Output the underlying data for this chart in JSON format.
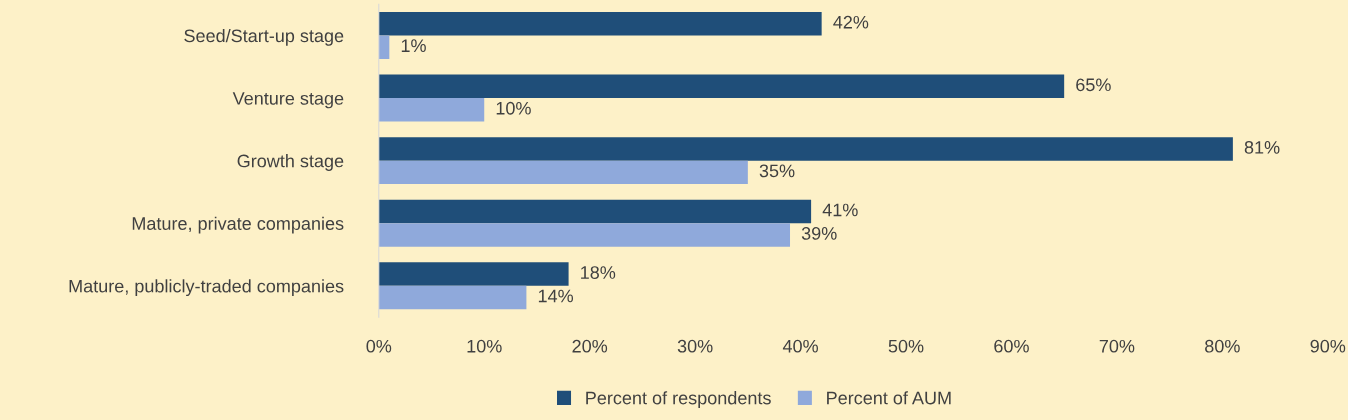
{
  "chart_data": {
    "type": "bar",
    "orientation": "horizontal",
    "categories": [
      "Seed/Start-up stage",
      "Venture stage",
      "Growth stage",
      "Mature, private companies",
      "Mature, publicly-traded companies"
    ],
    "series": [
      {
        "name": "Percent of respondents",
        "color": "#1f4e79",
        "values": [
          42,
          65,
          81,
          41,
          18
        ],
        "value_labels": [
          "42%",
          "65%",
          "81%",
          "41%",
          "18%"
        ]
      },
      {
        "name": "Percent of AUM",
        "color": "#8fa9db",
        "values": [
          1,
          10,
          35,
          39,
          14
        ],
        "value_labels": [
          "1%",
          "10%",
          "35%",
          "39%",
          "14%"
        ]
      }
    ],
    "xlim": [
      0,
      90
    ],
    "xticks": [
      {
        "value": 0,
        "label": "0%"
      },
      {
        "value": 10,
        "label": "10%"
      },
      {
        "value": 20,
        "label": "20%"
      },
      {
        "value": 30,
        "label": "30%"
      },
      {
        "value": 40,
        "label": "40%"
      },
      {
        "value": 50,
        "label": "50%"
      },
      {
        "value": 60,
        "label": "60%"
      },
      {
        "value": 70,
        "label": "70%"
      },
      {
        "value": 80,
        "label": "80%"
      },
      {
        "value": 90,
        "label": "90%"
      }
    ],
    "grid": false,
    "legend": "bottom"
  }
}
